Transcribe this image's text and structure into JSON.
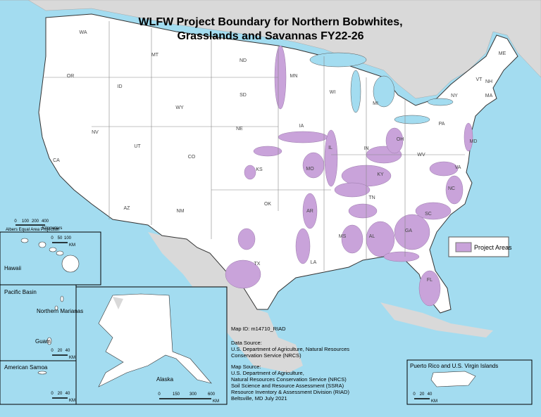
{
  "title": [
    "WLFW Project Boundary for Northern Bobwhites,",
    "Grasslands and Savannas FY22-26"
  ],
  "legend": "Project Areas",
  "main_scale": {
    "ticks": [
      "0",
      "100",
      "200",
      "400"
    ],
    "unit": "Kilometers",
    "projection": "Albers Equal Area Projection"
  },
  "states": [
    "WA",
    "OR",
    "CA",
    "NV",
    "ID",
    "MT",
    "WY",
    "UT",
    "AZ",
    "CO",
    "NM",
    "ND",
    "SD",
    "NE",
    "KS",
    "OK",
    "TX",
    "MN",
    "IA",
    "MO",
    "AR",
    "LA",
    "WI",
    "IL",
    "MS",
    "MI",
    "IN",
    "KY",
    "TN",
    "AL",
    "OH",
    "WV",
    "GA",
    "FL",
    "SC",
    "NC",
    "VA",
    "PA",
    "NY",
    "VT",
    "NH",
    "ME",
    "MA",
    "MD"
  ],
  "insets": {
    "hawaii": {
      "label": "Hawaii",
      "scale": [
        "0",
        "50",
        "100"
      ],
      "unit": "KM"
    },
    "pacific": {
      "label": "Pacific Basin",
      "marianas": "Northern Marianas",
      "guam": "Guam",
      "scale": [
        "0",
        "20",
        "40"
      ],
      "unit": "KM"
    },
    "samoa": {
      "label": "American Samoa",
      "scale": [
        "0",
        "20",
        "40"
      ],
      "unit": "KM"
    },
    "alaska": {
      "label": "Alaska",
      "scale": [
        "0",
        "150",
        "300",
        "600"
      ],
      "unit": "KM"
    },
    "puerto_rico": {
      "label": "Puerto Rico and U.S. Virgin Islands",
      "scale": [
        "0",
        "20",
        "40"
      ],
      "unit": "KM"
    }
  },
  "info": [
    "Map ID:  m14710_RIAD",
    "Data Source:",
    "U.S. Department of Agriculture, Natural Resources",
    "Conservation Service (NRCS)",
    "Map Source:",
    "U.S. Department of Agriculture,",
    "Natural Resources Conservation Service (NRCS)",
    "Soil Science and Resource Assessment (SSRA)",
    "Resource Inventory & Assessment Division (RIAD)",
    "Beltsville, MD    July 2021"
  ]
}
